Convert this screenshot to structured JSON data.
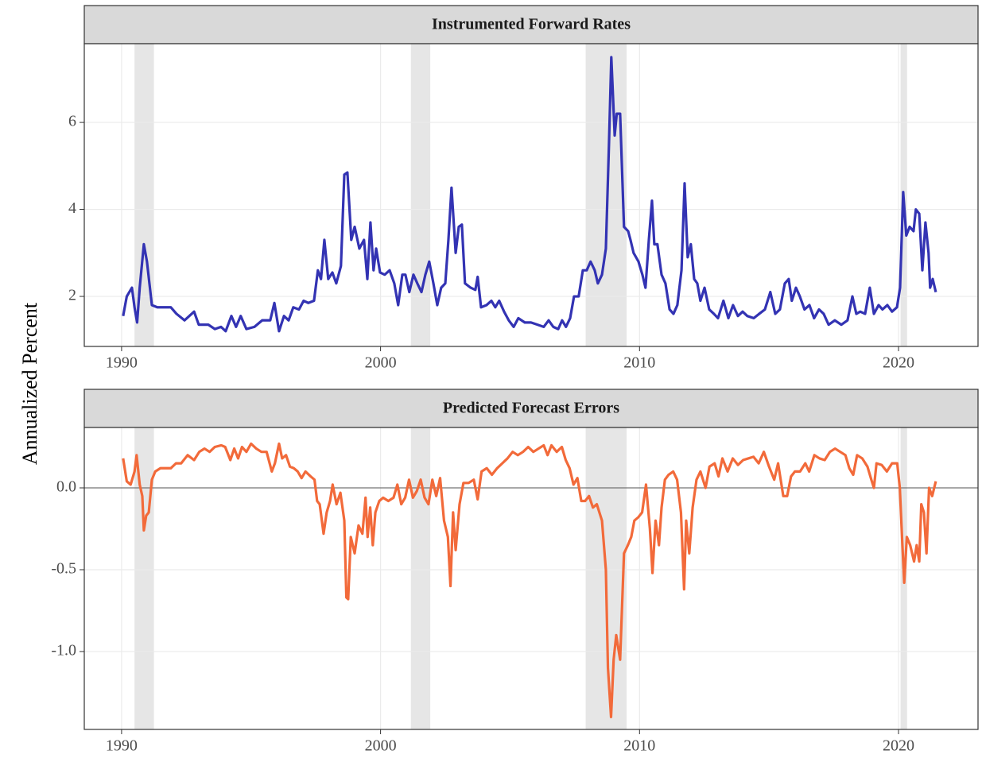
{
  "chart_data": [
    {
      "type": "line",
      "title": "Instrumented Forward Rates",
      "ylabel": "Annualized Percent",
      "color": "#3333b3",
      "xlim": [
        1988.56,
        2023.07
      ],
      "xticks": [
        1990,
        2000,
        2010,
        2020
      ],
      "ylim": [
        0.85,
        7.81
      ],
      "yticks": [
        2,
        4,
        6
      ],
      "grid": true,
      "shaded_periods": [
        [
          1990.5,
          1991.25
        ],
        [
          2001.17,
          2001.92
        ],
        [
          2007.92,
          2009.5
        ],
        [
          2020.08,
          2020.33
        ]
      ],
      "x": [
        1990.06,
        1990.2,
        1990.4,
        1990.5,
        1990.6,
        1990.7,
        1990.86,
        1990.98,
        1991.17,
        1991.38,
        1991.6,
        1991.9,
        1992.12,
        1992.43,
        1992.8,
        1992.98,
        1993.35,
        1993.6,
        1993.84,
        1994.02,
        1994.24,
        1994.42,
        1994.6,
        1994.82,
        1995.13,
        1995.43,
        1995.74,
        1995.9,
        1996.08,
        1996.27,
        1996.45,
        1996.63,
        1996.85,
        1997.03,
        1997.21,
        1997.43,
        1997.58,
        1997.7,
        1997.83,
        1997.98,
        1998.14,
        1998.29,
        1998.47,
        1998.6,
        1998.72,
        1998.87,
        1999.0,
        1999.18,
        1999.36,
        1999.49,
        1999.61,
        1999.73,
        1999.83,
        1999.98,
        2000.16,
        2000.35,
        2000.53,
        2000.68,
        2000.84,
        2000.96,
        2001.11,
        2001.27,
        2001.42,
        2001.58,
        2001.73,
        2001.88,
        2002.04,
        2002.19,
        2002.34,
        2002.5,
        2002.62,
        2002.74,
        2002.9,
        2003.02,
        2003.14,
        2003.26,
        2003.48,
        2003.66,
        2003.75,
        2003.88,
        2004.09,
        2004.28,
        2004.43,
        2004.58,
        2004.77,
        2004.95,
        2005.14,
        2005.32,
        2005.57,
        2005.81,
        2006.06,
        2006.3,
        2006.49,
        2006.67,
        2006.86,
        2007.01,
        2007.16,
        2007.32,
        2007.47,
        2007.65,
        2007.81,
        2007.96,
        2008.11,
        2008.27,
        2008.39,
        2008.55,
        2008.7,
        2008.82,
        2008.91,
        2009.04,
        2009.12,
        2009.25,
        2009.4,
        2009.56,
        2009.65,
        2009.77,
        2009.96,
        2010.11,
        2010.23,
        2010.36,
        2010.48,
        2010.57,
        2010.69,
        2010.85,
        2011.0,
        2011.16,
        2011.31,
        2011.46,
        2011.62,
        2011.74,
        2011.86,
        2011.98,
        2012.11,
        2012.23,
        2012.35,
        2012.51,
        2012.69,
        2012.87,
        2013.03,
        2013.24,
        2013.43,
        2013.61,
        2013.8,
        2013.98,
        2014.16,
        2014.41,
        2014.62,
        2014.84,
        2015.05,
        2015.24,
        2015.42,
        2015.61,
        2015.76,
        2015.88,
        2016.04,
        2016.19,
        2016.37,
        2016.56,
        2016.74,
        2016.93,
        2017.11,
        2017.3,
        2017.54,
        2017.79,
        2018.03,
        2018.22,
        2018.37,
        2018.52,
        2018.71,
        2018.89,
        2019.05,
        2019.23,
        2019.38,
        2019.57,
        2019.75,
        2019.94,
        2020.06,
        2020.18,
        2020.3,
        2020.43,
        2020.58,
        2020.67,
        2020.8,
        2020.92,
        2021.04,
        2021.16,
        2021.22,
        2021.32,
        2021.44
      ],
      "values": [
        1.55,
        2.0,
        2.2,
        1.75,
        1.4,
        2.2,
        3.2,
        2.8,
        1.8,
        1.75,
        1.75,
        1.75,
        1.6,
        1.45,
        1.65,
        1.35,
        1.35,
        1.25,
        1.3,
        1.2,
        1.55,
        1.3,
        1.55,
        1.25,
        1.3,
        1.45,
        1.45,
        1.85,
        1.2,
        1.55,
        1.45,
        1.75,
        1.7,
        1.9,
        1.85,
        1.9,
        2.6,
        2.4,
        3.3,
        2.4,
        2.55,
        2.3,
        2.7,
        4.8,
        4.85,
        3.3,
        3.6,
        3.1,
        3.3,
        2.4,
        3.7,
        2.6,
        3.1,
        2.55,
        2.5,
        2.6,
        2.3,
        1.8,
        2.5,
        2.5,
        2.1,
        2.5,
        2.3,
        2.1,
        2.5,
        2.8,
        2.3,
        1.8,
        2.2,
        2.3,
        3.3,
        4.5,
        3.0,
        3.6,
        3.65,
        2.3,
        2.2,
        2.15,
        2.45,
        1.75,
        1.8,
        1.9,
        1.75,
        1.9,
        1.65,
        1.45,
        1.3,
        1.5,
        1.4,
        1.4,
        1.35,
        1.3,
        1.45,
        1.3,
        1.25,
        1.45,
        1.3,
        1.5,
        2.0,
        2.0,
        2.6,
        2.6,
        2.8,
        2.6,
        2.3,
        2.5,
        3.1,
        5.5,
        7.5,
        5.7,
        6.2,
        6.2,
        3.6,
        3.5,
        3.3,
        3.0,
        2.8,
        2.5,
        2.2,
        3.3,
        4.2,
        3.2,
        3.2,
        2.5,
        2.3,
        1.7,
        1.6,
        1.8,
        2.6,
        4.6,
        2.9,
        3.2,
        2.4,
        2.3,
        1.9,
        2.2,
        1.7,
        1.6,
        1.5,
        1.9,
        1.5,
        1.8,
        1.55,
        1.65,
        1.55,
        1.5,
        1.6,
        1.7,
        2.1,
        1.6,
        1.7,
        2.3,
        2.4,
        1.9,
        2.2,
        2.0,
        1.7,
        1.8,
        1.5,
        1.7,
        1.6,
        1.35,
        1.45,
        1.35,
        1.45,
        2.0,
        1.6,
        1.65,
        1.6,
        2.2,
        1.6,
        1.8,
        1.7,
        1.8,
        1.65,
        1.75,
        2.2,
        4.4,
        3.4,
        3.6,
        3.5,
        4.0,
        3.9,
        2.6,
        3.7,
        3.0,
        2.2,
        2.4,
        2.1
      ]
    },
    {
      "type": "line",
      "title": "Predicted Forecast Errors",
      "color": "#f26a3a",
      "xlim": [
        1988.56,
        2023.07
      ],
      "xticks": [
        1990,
        2000,
        2010,
        2020
      ],
      "ylim": [
        -1.476,
        0.369
      ],
      "yticks": [
        {
          "value": 0,
          "label": "0.0"
        },
        {
          "value": -0.5,
          "label": "-0.5"
        },
        {
          "value": -1,
          "label": "-1.0"
        }
      ],
      "grid": true,
      "hline": 0,
      "shaded_periods": [
        [
          1990.5,
          1991.25
        ],
        [
          2001.17,
          2001.92
        ],
        [
          2007.92,
          2009.5
        ],
        [
          2020.08,
          2020.33
        ]
      ],
      "x": [
        1990.06,
        1990.2,
        1990.35,
        1990.5,
        1990.58,
        1990.7,
        1990.8,
        1990.86,
        1990.95,
        1991.05,
        1991.17,
        1991.3,
        1991.5,
        1991.7,
        1991.9,
        1992.1,
        1992.3,
        1992.55,
        1992.8,
        1993.0,
        1993.2,
        1993.4,
        1993.6,
        1993.85,
        1994.0,
        1994.2,
        1994.35,
        1994.5,
        1994.65,
        1994.82,
        1995.0,
        1995.2,
        1995.4,
        1995.6,
        1995.8,
        1995.92,
        1996.08,
        1996.2,
        1996.35,
        1996.5,
        1996.65,
        1996.8,
        1996.95,
        1997.1,
        1997.3,
        1997.45,
        1997.55,
        1997.65,
        1997.8,
        1997.92,
        1998.05,
        1998.15,
        1998.3,
        1998.45,
        1998.6,
        1998.68,
        1998.75,
        1998.85,
        1999.0,
        1999.15,
        1999.3,
        1999.42,
        1999.5,
        1999.6,
        1999.7,
        1999.8,
        1999.95,
        2000.1,
        2000.3,
        2000.5,
        2000.65,
        2000.8,
        2000.95,
        2001.1,
        2001.25,
        2001.4,
        2001.55,
        2001.7,
        2001.85,
        2002.0,
        2002.15,
        2002.3,
        2002.45,
        2002.6,
        2002.7,
        2002.8,
        2002.9,
        2003.05,
        2003.2,
        2003.4,
        2003.6,
        2003.75,
        2003.9,
        2004.1,
        2004.3,
        2004.5,
        2004.7,
        2004.9,
        2005.1,
        2005.3,
        2005.5,
        2005.7,
        2005.9,
        2006.1,
        2006.3,
        2006.45,
        2006.6,
        2006.8,
        2007.0,
        2007.15,
        2007.3,
        2007.45,
        2007.6,
        2007.75,
        2007.9,
        2008.05,
        2008.2,
        2008.35,
        2008.55,
        2008.7,
        2008.78,
        2008.9,
        2009.0,
        2009.1,
        2009.25,
        2009.4,
        2009.55,
        2009.68,
        2009.8,
        2009.95,
        2010.1,
        2010.25,
        2010.4,
        2010.5,
        2010.62,
        2010.75,
        2010.85,
        2010.98,
        2011.12,
        2011.3,
        2011.45,
        2011.6,
        2011.72,
        2011.8,
        2011.92,
        2012.05,
        2012.2,
        2012.35,
        2012.55,
        2012.7,
        2012.9,
        2013.05,
        2013.2,
        2013.4,
        2013.6,
        2013.8,
        2014.0,
        2014.2,
        2014.4,
        2014.6,
        2014.8,
        2015.0,
        2015.2,
        2015.35,
        2015.55,
        2015.7,
        2015.85,
        2016.0,
        2016.2,
        2016.4,
        2016.55,
        2016.75,
        2016.95,
        2017.15,
        2017.35,
        2017.55,
        2017.75,
        2017.95,
        2018.1,
        2018.25,
        2018.4,
        2018.6,
        2018.8,
        2018.95,
        2019.05,
        2019.15,
        2019.35,
        2019.55,
        2019.75,
        2019.95,
        2020.05,
        2020.15,
        2020.22,
        2020.32,
        2020.45,
        2020.6,
        2020.7,
        2020.8,
        2020.88,
        2020.98,
        2021.08,
        2021.18,
        2021.3,
        2021.44
      ],
      "values": [
        0.18,
        0.04,
        0.02,
        0.1,
        0.2,
        0.02,
        -0.05,
        -0.26,
        -0.17,
        -0.15,
        0.05,
        0.1,
        0.12,
        0.12,
        0.12,
        0.15,
        0.15,
        0.2,
        0.17,
        0.22,
        0.24,
        0.22,
        0.25,
        0.26,
        0.25,
        0.17,
        0.24,
        0.18,
        0.25,
        0.22,
        0.27,
        0.24,
        0.22,
        0.22,
        0.1,
        0.15,
        0.27,
        0.18,
        0.2,
        0.13,
        0.12,
        0.1,
        0.06,
        0.1,
        0.07,
        0.05,
        -0.08,
        -0.1,
        -0.28,
        -0.15,
        -0.08,
        0.02,
        -0.1,
        -0.03,
        -0.2,
        -0.67,
        -0.68,
        -0.3,
        -0.4,
        -0.23,
        -0.28,
        -0.06,
        -0.3,
        -0.12,
        -0.35,
        -0.15,
        -0.08,
        -0.06,
        -0.08,
        -0.06,
        0.02,
        -0.1,
        -0.06,
        0.05,
        -0.06,
        -0.02,
        0.05,
        -0.06,
        -0.1,
        0.05,
        -0.05,
        0.06,
        -0.2,
        -0.3,
        -0.6,
        -0.15,
        -0.38,
        -0.1,
        0.03,
        0.03,
        0.05,
        -0.07,
        0.1,
        0.12,
        0.08,
        0.12,
        0.15,
        0.18,
        0.22,
        0.2,
        0.22,
        0.25,
        0.22,
        0.24,
        0.26,
        0.2,
        0.26,
        0.22,
        0.25,
        0.17,
        0.12,
        0.02,
        0.06,
        -0.08,
        -0.08,
        -0.05,
        -0.12,
        -0.1,
        -0.2,
        -0.5,
        -1.1,
        -1.4,
        -1.05,
        -0.9,
        -1.05,
        -0.4,
        -0.35,
        -0.3,
        -0.2,
        -0.18,
        -0.15,
        0.02,
        -0.25,
        -0.52,
        -0.2,
        -0.35,
        -0.12,
        0.05,
        0.08,
        0.1,
        0.05,
        -0.15,
        -0.62,
        -0.2,
        -0.4,
        -0.12,
        0.05,
        0.1,
        0.0,
        0.13,
        0.15,
        0.07,
        0.18,
        0.1,
        0.18,
        0.14,
        0.17,
        0.18,
        0.19,
        0.15,
        0.22,
        0.13,
        0.05,
        0.15,
        -0.05,
        -0.05,
        0.07,
        0.1,
        0.1,
        0.15,
        0.1,
        0.2,
        0.18,
        0.17,
        0.22,
        0.24,
        0.22,
        0.2,
        0.12,
        0.08,
        0.2,
        0.18,
        0.13,
        0.05,
        0.0,
        0.15,
        0.14,
        0.1,
        0.15,
        0.15,
        0.0,
        -0.35,
        -0.58,
        -0.3,
        -0.35,
        -0.45,
        -0.35,
        -0.45,
        -0.1,
        -0.15,
        -0.4,
        0.0,
        -0.05,
        0.04
      ]
    }
  ]
}
